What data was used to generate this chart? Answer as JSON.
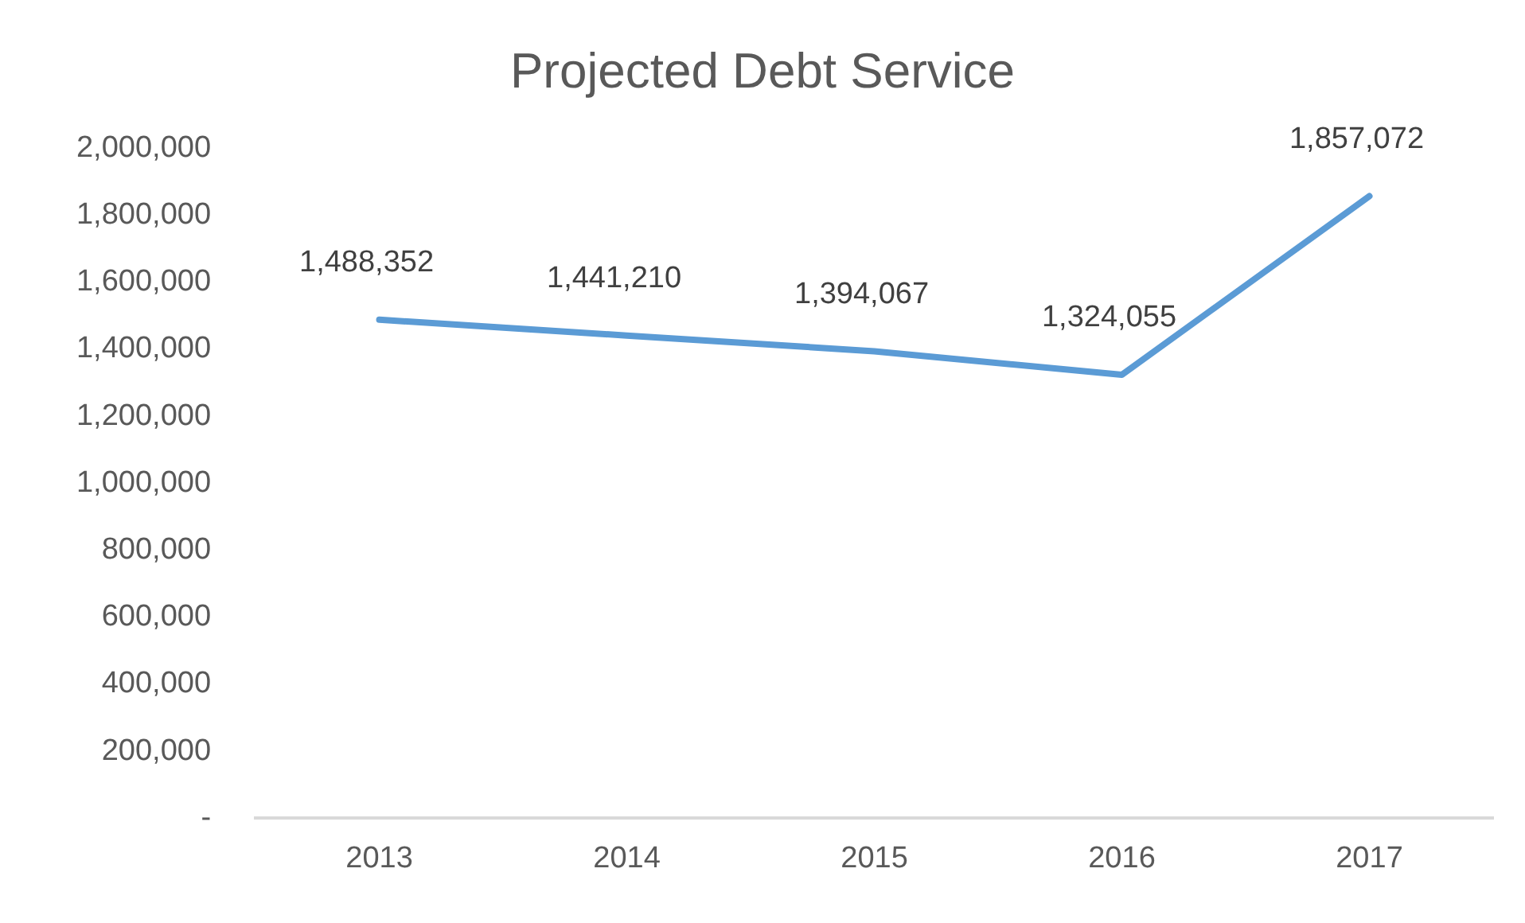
{
  "chart_data": {
    "type": "line",
    "title": "Projected Debt Service",
    "categories": [
      "2013",
      "2014",
      "2015",
      "2016",
      "2017"
    ],
    "series": [
      {
        "color": "#5b9bd5",
        "values": [
          1488352,
          1441210,
          1394067,
          1324055,
          1857072
        ],
        "value_labels": [
          "1,488,352",
          "1,441,210",
          "1,394,067",
          "1,324,055",
          "1,857,072"
        ]
      }
    ],
    "ylim": [
      0,
      2000000
    ],
    "yticks": [
      {
        "value": 0,
        "label": "-"
      },
      {
        "value": 200000,
        "label": "200,000"
      },
      {
        "value": 400000,
        "label": "400,000"
      },
      {
        "value": 600000,
        "label": "600,000"
      },
      {
        "value": 800000,
        "label": "800,000"
      },
      {
        "value": 1000000,
        "label": "1,000,000"
      },
      {
        "value": 1200000,
        "label": "1,200,000"
      },
      {
        "value": 1400000,
        "label": "1,400,000"
      },
      {
        "value": 1600000,
        "label": "1,600,000"
      },
      {
        "value": 1800000,
        "label": "1,800,000"
      },
      {
        "value": 2000000,
        "label": "2,000,000"
      }
    ],
    "grid": false,
    "legend": false,
    "marker": "none",
    "line_style": "solid"
  }
}
